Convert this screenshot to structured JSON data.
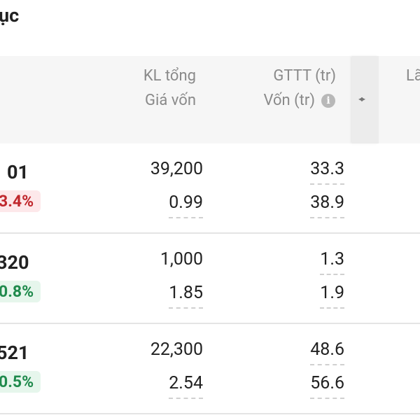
{
  "header": {
    "title": "ục"
  },
  "table": {
    "columns": [
      {
        "line1": "KL tổng",
        "line2": "Giá vốn"
      },
      {
        "line1": "GTTT (tr)",
        "line2": "Vốn (tr)"
      },
      {
        "line1": "Lã"
      }
    ],
    "rows": [
      {
        "symbol": "01",
        "change": "3.4%",
        "color": "#c0282d",
        "badge": "#fde8ea",
        "volume": "39,200",
        "cost": "0.99",
        "market_value": "33.3",
        "capital": "38.9"
      },
      {
        "symbol": "320",
        "change": "0.8%",
        "color": "#1f8a4c",
        "badge": "#e6f6ec",
        "volume": "1,000",
        "cost": "1.85",
        "market_value": "1.3",
        "capital": "1.9"
      },
      {
        "symbol": "521",
        "change": "0.5%",
        "color": "#1f8a4c",
        "badge": "#e6f6ec",
        "volume": "22,300",
        "cost": "2.54",
        "market_value": "48.6",
        "capital": "56.6"
      }
    ]
  }
}
